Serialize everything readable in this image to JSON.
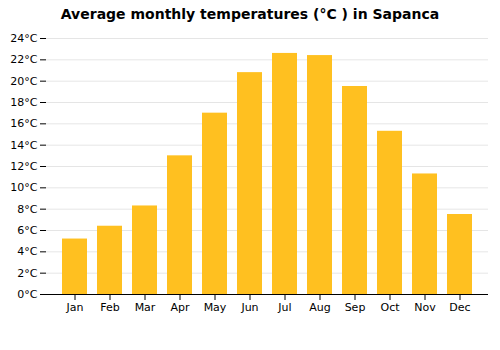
{
  "chart_data": {
    "type": "bar",
    "title": "Average monthly temperatures (°C ) in Sapanca",
    "categories": [
      "Jan",
      "Feb",
      "Mar",
      "Apr",
      "May",
      "Jun",
      "Jul",
      "Aug",
      "Sep",
      "Oct",
      "Nov",
      "Dec"
    ],
    "values": [
      5.2,
      6.4,
      8.3,
      13.0,
      17.0,
      20.8,
      22.6,
      22.4,
      19.5,
      15.3,
      11.3,
      7.5
    ],
    "color": "#FFC020",
    "ylim": [
      0,
      24
    ],
    "yticks": [
      {
        "value": 0,
        "label": "0°C"
      },
      {
        "value": 2,
        "label": "2°C"
      },
      {
        "value": 4,
        "label": "4°C"
      },
      {
        "value": 6,
        "label": "6°C"
      },
      {
        "value": 8,
        "label": "8°C"
      },
      {
        "value": 10,
        "label": "10°C"
      },
      {
        "value": 12,
        "label": "12°C"
      },
      {
        "value": 14,
        "label": "14°C"
      },
      {
        "value": 16,
        "label": "16°C"
      },
      {
        "value": 18,
        "label": "18°C"
      },
      {
        "value": 20,
        "label": "20°C"
      },
      {
        "value": 22,
        "label": "22°C"
      },
      {
        "value": 24,
        "label": "24°C"
      }
    ],
    "grid": true
  }
}
